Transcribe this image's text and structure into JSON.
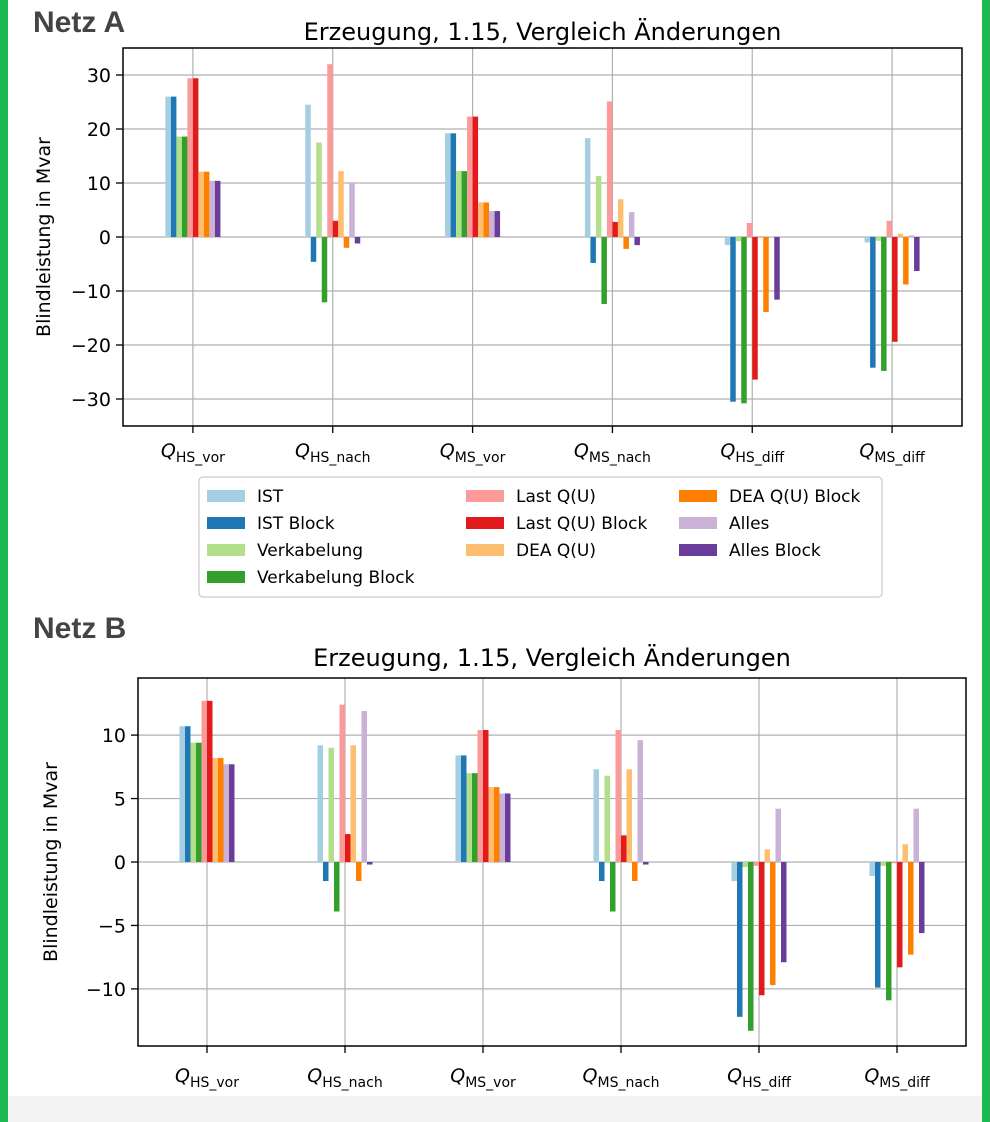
{
  "panels": [
    {
      "net_label": "Netz A"
    },
    {
      "net_label": "Netz B"
    }
  ],
  "colors": {
    "IST": "#a6cee3",
    "IST Block": "#1f78b4",
    "Verkabelung": "#b2df8a",
    "Verkabelung Block": "#33a02c",
    "Last Q(U)": "#fb9a99",
    "Last Q(U) Block": "#e31a1c",
    "DEA Q(U)": "#fdbf6f",
    "DEA Q(U) Block": "#ff7f00",
    "Alles": "#cab2d6",
    "Alles Block": "#6a3d9a"
  },
  "chart_data": [
    {
      "type": "bar",
      "title": "Erzeugung, 1.15, Vergleich Änderungen",
      "ylabel": "Blindleistung in Mvar",
      "xlabel": "",
      "categories": [
        {
          "base": "Q",
          "sub": "HS_vor"
        },
        {
          "base": "Q",
          "sub": "HS_nach"
        },
        {
          "base": "Q",
          "sub": "MS_vor"
        },
        {
          "base": "Q",
          "sub": "MS_nach"
        },
        {
          "base": "Q",
          "sub": "HS_diff"
        },
        {
          "base": "Q",
          "sub": "MS_diff"
        }
      ],
      "ylim": [
        -35,
        35
      ],
      "yticks": [
        -30,
        -20,
        -10,
        0,
        10,
        20,
        30
      ],
      "ytick_labels": [
        "−30",
        "−20",
        "−10",
        "0",
        "10",
        "20",
        "30"
      ],
      "grid": true,
      "legend_placement": "below",
      "series": [
        {
          "name": "IST",
          "values": [
            26,
            24.5,
            19.2,
            18.3,
            -1.5,
            -1.0
          ]
        },
        {
          "name": "IST Block",
          "values": [
            26,
            -4.6,
            19.2,
            -4.8,
            -30.5,
            -24.2
          ]
        },
        {
          "name": "Verkabelung",
          "values": [
            18.6,
            17.5,
            12.2,
            11.3,
            -0.8,
            -0.7
          ]
        },
        {
          "name": "Verkabelung Block",
          "values": [
            18.6,
            -12.1,
            12.2,
            -12.4,
            -30.8,
            -24.8
          ]
        },
        {
          "name": "Last Q(U)",
          "values": [
            29.4,
            32,
            22.3,
            25.1,
            2.6,
            3.0
          ]
        },
        {
          "name": "Last Q(U) Block",
          "values": [
            29.4,
            3.0,
            22.3,
            2.8,
            -26.4,
            -19.4
          ]
        },
        {
          "name": "DEA Q(U)",
          "values": [
            12.1,
            12.2,
            6.4,
            7.0,
            0.2,
            0.6
          ]
        },
        {
          "name": "DEA Q(U) Block",
          "values": [
            12.1,
            -2.0,
            6.4,
            -2.2,
            -13.9,
            -8.8
          ]
        },
        {
          "name": "Alles",
          "values": [
            10.4,
            10.0,
            4.8,
            4.6,
            0.1,
            0.3
          ]
        },
        {
          "name": "Alles Block",
          "values": [
            10.4,
            -1.2,
            4.8,
            -1.5,
            -11.6,
            -6.3
          ]
        }
      ]
    },
    {
      "type": "bar",
      "title": "Erzeugung, 1.15, Vergleich Änderungen",
      "ylabel": "Blindleistung in Mvar",
      "xlabel": "",
      "categories": [
        {
          "base": "Q",
          "sub": "HS_vor"
        },
        {
          "base": "Q",
          "sub": "HS_nach"
        },
        {
          "base": "Q",
          "sub": "MS_vor"
        },
        {
          "base": "Q",
          "sub": "MS_nach"
        },
        {
          "base": "Q",
          "sub": "HS_diff"
        },
        {
          "base": "Q",
          "sub": "MS_diff"
        }
      ],
      "ylim": [
        -14.5,
        14.5
      ],
      "yticks": [
        -10,
        -5,
        0,
        5,
        10
      ],
      "ytick_labels": [
        "−10",
        "−5",
        "0",
        "5",
        "10"
      ],
      "grid": true,
      "series": [
        {
          "name": "IST",
          "values": [
            10.7,
            9.2,
            8.4,
            7.3,
            -1.5,
            -1.1
          ]
        },
        {
          "name": "IST Block",
          "values": [
            10.7,
            -1.5,
            8.4,
            -1.5,
            -12.2,
            -9.9
          ]
        },
        {
          "name": "Verkabelung",
          "values": [
            9.4,
            9.0,
            7.0,
            6.8,
            -0.4,
            -0.3
          ]
        },
        {
          "name": "Verkabelung Block",
          "values": [
            9.4,
            -3.9,
            7.0,
            -3.9,
            -13.3,
            -10.9
          ]
        },
        {
          "name": "Last Q(U)",
          "values": [
            12.7,
            12.4,
            10.4,
            10.4,
            -0.3,
            -0.1
          ]
        },
        {
          "name": "Last Q(U) Block",
          "values": [
            12.7,
            2.2,
            10.4,
            2.1,
            -10.5,
            -8.3
          ]
        },
        {
          "name": "DEA Q(U)",
          "values": [
            8.2,
            9.2,
            5.9,
            7.3,
            1.0,
            1.4
          ]
        },
        {
          "name": "DEA Q(U) Block",
          "values": [
            8.2,
            -1.5,
            5.9,
            -1.5,
            -9.7,
            -7.3
          ]
        },
        {
          "name": "Alles",
          "values": [
            7.7,
            11.9,
            5.4,
            9.6,
            4.2,
            4.2
          ]
        },
        {
          "name": "Alles Block",
          "values": [
            7.7,
            -0.2,
            5.4,
            -0.2,
            -7.9,
            -5.6
          ]
        }
      ]
    }
  ]
}
